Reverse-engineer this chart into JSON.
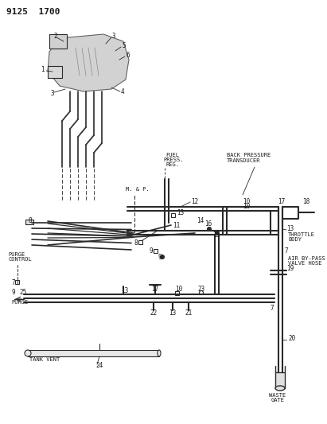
{
  "title": "9125  1700",
  "bg_color": "#ffffff",
  "line_color": "#2a2a2a",
  "text_color": "#1a1a1a",
  "figsize": [
    4.11,
    5.33
  ],
  "dpi": 100,
  "labels": {
    "title": "9125  1700",
    "fuel_press": "FUEL\nPRESS.\nREG.",
    "back_pressure": "BACK PRESSURE\nTRANSDUCER",
    "throttle_body": "THROTTLE\nBODY",
    "air_bypass": "AIR BY-PASS\nVALVE HOSE",
    "waste_gate": "WASTE\nGATE",
    "purge_control": "PURGE\nCONTROL",
    "purge": "PURGE",
    "tank_vent": "TANK VENT",
    "map": "M. & P."
  }
}
